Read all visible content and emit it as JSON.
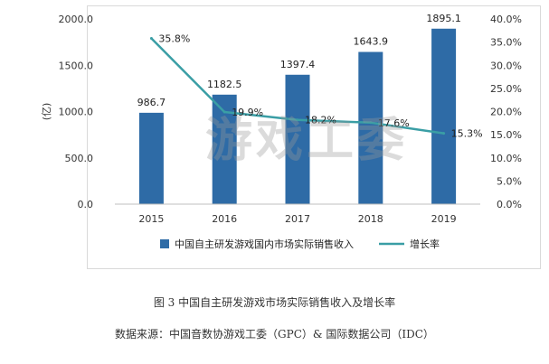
{
  "chart_data": {
    "type": "bar+line",
    "categories": [
      "2015",
      "2016",
      "2017",
      "2018",
      "2019"
    ],
    "series": [
      {
        "name": "中国自主研发游戏国内市场实际销售收入",
        "kind": "bar",
        "axis": "left",
        "values": [
          986.7,
          1182.5,
          1397.4,
          1643.9,
          1895.1
        ],
        "labels": [
          "986.7",
          "1182.5",
          "1397.4",
          "1643.9",
          "1895.1"
        ],
        "color": "#2e6ba6"
      },
      {
        "name": "增长率",
        "kind": "line",
        "axis": "right",
        "values": [
          35.8,
          19.9,
          18.2,
          17.6,
          15.3
        ],
        "labels": [
          "35.8%",
          "19.9%",
          "18.2%",
          "17.6%",
          "15.3%"
        ],
        "color": "#3a9ea5"
      }
    ],
    "ylabel": "(亿)",
    "ylim": [
      0,
      2000
    ],
    "y_ticks": [
      "0.0",
      "500.0",
      "1000.0",
      "1500.0",
      "2000.0"
    ],
    "y2lim": [
      0,
      40
    ],
    "y2_ticks": [
      "0.0%",
      "5.0%",
      "10.0%",
      "15.0%",
      "20.0%",
      "25.0%",
      "30.0%",
      "35.0%",
      "40.0%"
    ],
    "legend_position": "bottom",
    "watermark": "游戏工委"
  },
  "caption": {
    "title": "图 3  中国自主研发游戏市场实际销售收入及增长率",
    "source": "数据来源：中国音数协游戏工委（GPC）& 国际数据公司（IDC）"
  }
}
